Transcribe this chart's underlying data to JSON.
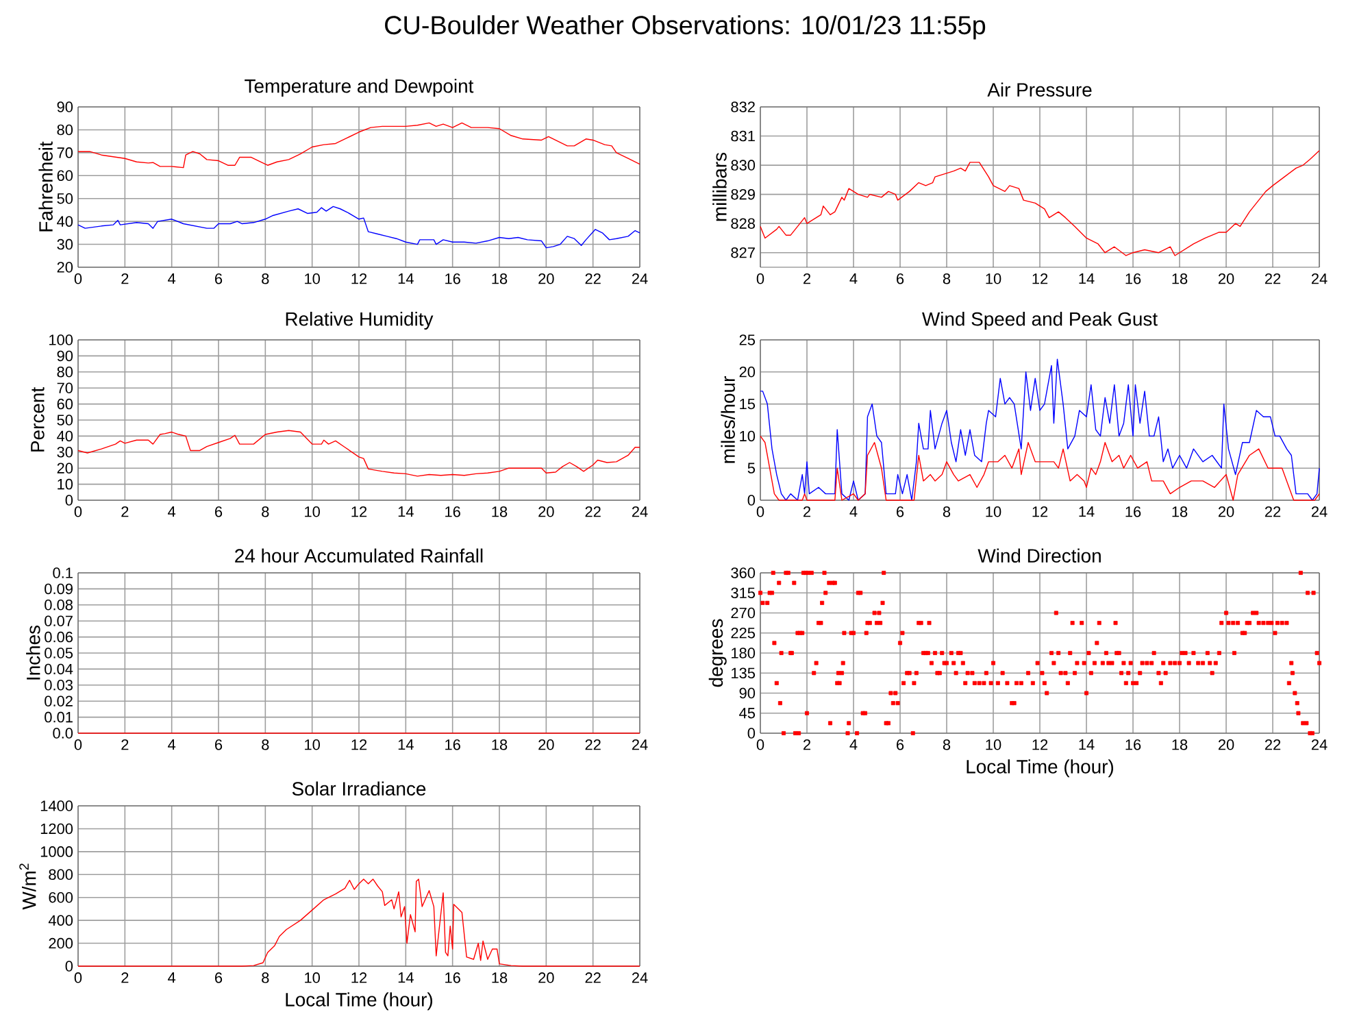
{
  "chart_data": [
    {
      "type": "line",
      "title": "Temperature and Dewpoint",
      "ylabel": "Fahrenheit",
      "annotations": [
        "CU-Boulder Weather Observations: 10/01/23 11:55p"
      ],
      "xlim": [
        0,
        24
      ],
      "xticks": [
        0,
        2,
        4,
        6,
        8,
        10,
        12,
        14,
        16,
        18,
        20,
        22,
        24
      ],
      "ylim": [
        20,
        90
      ],
      "yticks": [
        20,
        30,
        40,
        50,
        60,
        70,
        80,
        90
      ],
      "grid": true,
      "series": [
        {
          "color": "#ff0000",
          "x": [
            0,
            0.5,
            1,
            2,
            2.5,
            3,
            3.2,
            3.5,
            4,
            4.5,
            4.6,
            4.9,
            5.2,
            5.5,
            6,
            6.4,
            6.7,
            6.9,
            7.4,
            7.7,
            8.1,
            8.5,
            9,
            9.5,
            10,
            10.5,
            11,
            11.5,
            12,
            12.5,
            13,
            14,
            14.5,
            15,
            15.3,
            15.6,
            16,
            16.4,
            16.8,
            17.5,
            18,
            18.5,
            19,
            19.8,
            20.1,
            20.5,
            20.9,
            21.2,
            21.7,
            22,
            22.5,
            22.8,
            23,
            23.5,
            24
          ],
          "values": [
            70.5,
            70.5,
            69,
            67.5,
            66,
            65.5,
            65.7,
            64,
            64,
            63.5,
            69,
            70.5,
            69.5,
            67,
            66.5,
            64.5,
            64.5,
            68,
            68,
            66.5,
            64.5,
            66,
            67,
            69.5,
            72.5,
            73.5,
            74,
            76.5,
            79,
            81,
            81.5,
            81.5,
            82,
            83,
            81.5,
            82.5,
            81,
            83,
            81,
            81,
            80.5,
            77.5,
            76,
            75.5,
            77,
            75,
            73,
            73,
            76,
            75.5,
            73.5,
            73,
            70,
            67.5,
            65
          ]
        },
        {
          "color": "#0000ff",
          "x": [
            0,
            0.3,
            1,
            1.5,
            1.7,
            1.8,
            2.5,
            3,
            3.2,
            3.4,
            4,
            4.5,
            5,
            5.5,
            5.8,
            6,
            6.5,
            6.8,
            7,
            7.5,
            8,
            8.3,
            9,
            9.4,
            9.8,
            10.2,
            10.4,
            10.6,
            10.9,
            11.2,
            11.5,
            12,
            12.2,
            12.4,
            12.8,
            13.2,
            13.6,
            14,
            14.5,
            14.6,
            15.2,
            15.3,
            15.6,
            16,
            16.5,
            17,
            17.5,
            18,
            18.4,
            18.8,
            19.2,
            19.8,
            20,
            20.3,
            20.6,
            20.9,
            21.2,
            21.5,
            21.7,
            22.1,
            22.4,
            22.7,
            23,
            23.5,
            23.8,
            24
          ],
          "values": [
            38.5,
            37,
            38,
            38.5,
            40.5,
            38.5,
            39.5,
            39,
            37,
            40,
            41,
            39,
            38,
            37,
            37,
            39,
            39,
            40,
            39,
            39.5,
            41,
            42.5,
            44.5,
            45.5,
            43.5,
            44,
            46,
            44.5,
            46.5,
            45.5,
            44,
            41,
            41.5,
            35.5,
            34.5,
            33.5,
            32.5,
            31,
            30,
            32,
            32,
            30,
            32,
            31,
            31,
            30.5,
            31.5,
            33,
            32.5,
            33,
            32,
            31.5,
            28.5,
            29,
            30,
            33.5,
            32.5,
            29.5,
            32,
            36.5,
            35,
            32,
            32.5,
            33.5,
            36,
            35
          ]
        }
      ]
    },
    {
      "type": "line",
      "title": "Air Pressure",
      "ylabel": "millibars",
      "xlim": [
        0,
        24
      ],
      "xticks": [
        0,
        2,
        4,
        6,
        8,
        10,
        12,
        14,
        16,
        18,
        20,
        22,
        24
      ],
      "ylim": [
        826.5,
        832
      ],
      "yticks": [
        827,
        828,
        829,
        830,
        831,
        832
      ],
      "grid": true,
      "series": [
        {
          "color": "#ff0000",
          "x": [
            0,
            0.2,
            0.7,
            0.8,
            1.1,
            1.3,
            1.6,
            1.8,
            1.9,
            2,
            2.4,
            2.6,
            2.7,
            3,
            3.2,
            3.5,
            3.6,
            3.8,
            4.2,
            4.6,
            4.7,
            5.2,
            5.5,
            5.8,
            5.9,
            6.4,
            6.8,
            7.1,
            7.4,
            7.5,
            7.9,
            8.3,
            8.6,
            8.8,
            9,
            9.4,
            9.8,
            10,
            10.5,
            10.7,
            11.1,
            11.3,
            11.8,
            12.2,
            12.4,
            12.8,
            13.1,
            13.5,
            14,
            14.5,
            14.8,
            15.2,
            15.7,
            16,
            16.5,
            17.1,
            17.6,
            17.8,
            18.2,
            18.6,
            19.1,
            19.7,
            20,
            20.4,
            20.6,
            21,
            21.3,
            21.7,
            22,
            22.5,
            23,
            23.3,
            23.6,
            24
          ],
          "values": [
            827.9,
            827.5,
            827.8,
            827.9,
            827.6,
            827.6,
            827.9,
            828.1,
            828.2,
            828,
            828.2,
            828.3,
            828.6,
            828.3,
            828.4,
            828.9,
            828.8,
            829.2,
            829,
            828.9,
            829,
            828.9,
            829.1,
            829,
            828.8,
            829.1,
            829.4,
            829.3,
            829.4,
            829.6,
            829.7,
            829.8,
            829.9,
            829.8,
            830.1,
            830.1,
            829.6,
            829.3,
            829.1,
            829.3,
            829.2,
            828.8,
            828.7,
            828.5,
            828.2,
            828.4,
            828.2,
            827.9,
            827.5,
            827.3,
            827,
            827.2,
            826.9,
            827,
            827.1,
            827,
            827.2,
            826.9,
            827.1,
            827.3,
            827.5,
            827.7,
            827.7,
            828,
            827.9,
            828.4,
            828.7,
            829.1,
            829.3,
            829.6,
            829.9,
            830,
            830.2,
            830.5
          ]
        }
      ]
    },
    {
      "type": "line",
      "title": "Relative Humidity",
      "ylabel": "Percent",
      "xlim": [
        0,
        24
      ],
      "xticks": [
        0,
        2,
        4,
        6,
        8,
        10,
        12,
        14,
        16,
        18,
        20,
        22,
        24
      ],
      "ylim": [
        0,
        100
      ],
      "yticks": [
        0,
        10,
        20,
        30,
        40,
        50,
        60,
        70,
        80,
        90,
        100
      ],
      "grid": true,
      "series": [
        {
          "color": "#ff0000",
          "x": [
            0,
            0.4,
            1,
            1.6,
            1.8,
            2,
            2.5,
            3,
            3.2,
            3.5,
            3.7,
            4,
            4.3,
            4.6,
            4.8,
            5.2,
            5.5,
            6,
            6.5,
            6.7,
            6.9,
            7.5,
            8,
            8.5,
            9,
            9.5,
            9.8,
            10,
            10.4,
            10.5,
            10.7,
            11,
            11.4,
            12,
            12.2,
            12.4,
            13,
            13.5,
            14,
            14.5,
            15,
            15.5,
            16,
            16.5,
            17,
            17.5,
            18,
            18.4,
            19.8,
            20,
            20.4,
            20.7,
            21,
            21.3,
            21.6,
            22,
            22.2,
            22.6,
            23,
            23.5,
            23.8,
            24
          ],
          "values": [
            31,
            29.5,
            32,
            35,
            37,
            35.5,
            37.5,
            37.5,
            35,
            41,
            41.5,
            42.5,
            41,
            40,
            31,
            31,
            33.5,
            36,
            38.5,
            40.5,
            35,
            35,
            41,
            42.5,
            43.5,
            42.5,
            38,
            35,
            35,
            37.5,
            35,
            37,
            33,
            27,
            26,
            19.5,
            18,
            17,
            16.5,
            15,
            16,
            15.5,
            16,
            15.5,
            16.5,
            17,
            18,
            20,
            20,
            17,
            17.5,
            21,
            23.5,
            21,
            18,
            22,
            25,
            23.5,
            24,
            28,
            33,
            33
          ]
        }
      ]
    },
    {
      "type": "line",
      "title": "Wind Speed and Peak Gust",
      "ylabel": "miles/hour",
      "xlim": [
        0,
        24
      ],
      "xticks": [
        0,
        2,
        4,
        6,
        8,
        10,
        12,
        14,
        16,
        18,
        20,
        22,
        24
      ],
      "ylim": [
        0,
        25
      ],
      "yticks": [
        0,
        5,
        10,
        15,
        20,
        25
      ],
      "grid": true,
      "series": [
        {
          "color": "#0000ff",
          "x": [
            0,
            0.1,
            0.3,
            0.5,
            0.7,
            0.9,
            1.1,
            1.3,
            1.6,
            1.8,
            1.9,
            2,
            2.1,
            2.5,
            2.8,
            3.2,
            3.3,
            3.5,
            3.8,
            4,
            4.2,
            4.5,
            4.6,
            4.8,
            5,
            5.2,
            5.4,
            5.8,
            5.9,
            6.1,
            6.3,
            6.5,
            6.7,
            6.8,
            7,
            7.2,
            7.3,
            7.5,
            7.8,
            8,
            8.2,
            8.4,
            8.6,
            8.8,
            9,
            9.2,
            9.5,
            9.7,
            9.8,
            10.1,
            10.3,
            10.5,
            10.7,
            10.9,
            11.2,
            11.4,
            11.6,
            11.8,
            12,
            12.2,
            12.4,
            12.5,
            12.6,
            12.75,
            13,
            13.2,
            13.5,
            13.7,
            14,
            14.2,
            14.4,
            14.6,
            14.8,
            15,
            15.2,
            15.4,
            15.6,
            15.8,
            16,
            16.1,
            16.3,
            16.5,
            16.7,
            16.9,
            17.1,
            17.3,
            17.5,
            17.7,
            18,
            18.3,
            18.6,
            19,
            19.4,
            19.8,
            19.9,
            20.1,
            20.4,
            20.7,
            21,
            21.3,
            21.6,
            21.9,
            22.1,
            22.3,
            22.6,
            22.8,
            23,
            23.5,
            23.7,
            23.9,
            24
          ],
          "values": [
            17,
            17,
            15,
            8,
            4,
            1,
            0,
            1,
            0,
            4,
            1,
            6,
            1,
            2,
            1,
            1,
            11,
            1,
            0,
            3,
            0,
            1,
            13,
            15,
            10,
            9,
            1,
            1,
            4,
            1,
            4,
            0,
            6,
            12,
            8,
            8,
            14,
            8,
            12,
            14,
            9,
            6,
            11,
            7,
            11,
            7,
            6,
            12,
            14,
            13,
            19,
            15,
            16,
            15,
            8,
            20,
            14,
            19,
            14,
            15,
            19,
            21,
            12,
            22,
            15,
            8,
            10,
            14,
            13,
            18,
            11,
            10,
            16,
            12,
            18,
            10,
            12,
            18,
            10,
            18,
            12,
            17,
            10,
            10,
            13,
            6,
            8,
            5,
            7,
            5,
            8,
            6,
            7,
            5,
            15,
            8,
            4,
            9,
            9,
            14,
            13,
            13,
            10,
            10,
            8,
            7,
            1,
            1,
            0,
            1,
            5
          ]
        },
        {
          "color": "#ff0000",
          "x": [
            0,
            0.2,
            0.4,
            0.6,
            0.8,
            1.8,
            1.9,
            2,
            3.2,
            3.3,
            3.5,
            4,
            4.2,
            4.5,
            4.6,
            4.9,
            5.2,
            5.4,
            6.6,
            6.8,
            7,
            7.3,
            7.5,
            7.8,
            8,
            8.3,
            8.5,
            9,
            9.3,
            9.6,
            9.8,
            10.2,
            10.5,
            10.8,
            11.1,
            11.2,
            11.5,
            11.8,
            12.2,
            12.6,
            12.8,
            13,
            13.3,
            13.6,
            13.9,
            14,
            14.2,
            14.4,
            14.6,
            14.8,
            15.1,
            15.4,
            15.6,
            15.9,
            16.2,
            16.6,
            16.8,
            17.3,
            17.6,
            18,
            18.5,
            19,
            19.5,
            20,
            20.3,
            20.5,
            21,
            21.4,
            21.8,
            22.4,
            22.6,
            22.9,
            23.8,
            24
          ],
          "values": [
            10,
            9,
            5,
            1,
            0,
            0,
            1,
            0,
            0,
            5,
            0,
            1,
            0,
            1,
            7,
            9,
            5,
            0,
            0,
            7,
            3,
            4,
            3,
            4,
            6,
            4,
            3,
            4,
            2,
            4,
            6,
            6,
            7,
            5,
            8,
            4,
            9,
            6,
            6,
            6,
            5,
            8,
            3,
            4,
            3,
            2,
            5,
            4,
            6,
            9,
            6,
            7,
            5,
            7,
            5,
            6,
            3,
            3,
            1,
            2,
            3,
            3,
            2,
            4,
            0,
            4,
            7,
            8,
            5,
            5,
            3,
            0,
            0,
            1
          ]
        }
      ]
    },
    {
      "type": "line",
      "title": "24 hour Accumulated Rainfall",
      "ylabel": "Inches",
      "xlim": [
        0,
        24
      ],
      "xticks": [
        0,
        2,
        4,
        6,
        8,
        10,
        12,
        14,
        16,
        18,
        20,
        22,
        24
      ],
      "ylim": [
        0,
        0.1
      ],
      "yticks": [
        {
          "value": 0,
          "label": "0.0"
        },
        0.01,
        0.02,
        0.03,
        0.04,
        0.05,
        0.06,
        0.07,
        0.08,
        0.09,
        0.1
      ],
      "grid": true,
      "series": [
        {
          "color": "#ff0000",
          "x": [
            0,
            24
          ],
          "values": [
            0,
            0
          ]
        }
      ]
    },
    {
      "type": "scatter",
      "title": "Wind Direction",
      "ylabel": "degrees",
      "xlabel": "Local Time (hour)",
      "marker": "square",
      "xlim": [
        0,
        24
      ],
      "xticks": [
        0,
        2,
        4,
        6,
        8,
        10,
        12,
        14,
        16,
        18,
        20,
        22,
        24
      ],
      "ylim": [
        0,
        360
      ],
      "yticks": [
        0,
        45,
        90,
        135,
        180,
        225,
        270,
        315,
        360
      ],
      "grid": true,
      "series": [
        {
          "color": "#ff0000",
          "x": [
            0,
            0.1,
            0.3,
            0.4,
            0.5,
            0.55,
            0.6,
            0.7,
            0.8,
            0.85,
            0.9,
            1.0,
            1.1,
            1.2,
            1.3,
            1.35,
            1.45,
            1.5,
            1.6,
            1.65,
            1.7,
            1.8,
            1.85,
            1.95,
            2.0,
            2.05,
            2.2,
            2.3,
            2.4,
            2.5,
            2.6,
            2.65,
            2.75,
            2.8,
            2.95,
            3.0,
            3.1,
            3.2,
            3.3,
            3.35,
            3.4,
            3.5,
            3.55,
            3.6,
            3.75,
            3.8,
            3.9,
            4.0,
            4.15,
            4.2,
            4.3,
            4.4,
            4.5,
            4.55,
            4.6,
            4.7,
            4.9,
            5.0,
            5.1,
            5.15,
            5.25,
            5.3,
            5.4,
            5.5,
            5.6,
            5.7,
            5.8,
            5.9,
            6.0,
            6.1,
            6.15,
            6.3,
            6.4,
            6.55,
            6.6,
            6.7,
            6.8,
            6.9,
            7.0,
            7.1,
            7.2,
            7.25,
            7.35,
            7.5,
            7.6,
            7.7,
            7.8,
            7.9,
            8.0,
            8.2,
            8.3,
            8.4,
            8.5,
            8.6,
            8.7,
            8.8,
            8.9,
            9.1,
            9.2,
            9.4,
            9.6,
            9.7,
            9.9,
            10.0,
            10.2,
            10.4,
            10.6,
            10.8,
            10.9,
            11.0,
            11.2,
            11.5,
            11.7,
            11.9,
            12.1,
            12.2,
            12.3,
            12.5,
            12.6,
            12.7,
            12.8,
            12.9,
            13.1,
            13.2,
            13.3,
            13.4,
            13.5,
            13.6,
            13.8,
            13.9,
            14.0,
            14.1,
            14.2,
            14.35,
            14.45,
            14.55,
            14.7,
            14.85,
            14.95,
            15.1,
            15.25,
            15.3,
            15.4,
            15.5,
            15.6,
            15.7,
            15.8,
            15.9,
            16.0,
            16.15,
            16.3,
            16.4,
            16.6,
            16.8,
            16.9,
            17.1,
            17.2,
            17.3,
            17.4,
            17.6,
            17.8,
            18.0,
            18.1,
            18.25,
            18.4,
            18.6,
            18.8,
            19.0,
            19.2,
            19.3,
            19.4,
            19.55,
            19.7,
            19.8,
            20.0,
            20.1,
            20.3,
            20.35,
            20.5,
            20.7,
            20.8,
            20.9,
            21.0,
            21.15,
            21.3,
            21.4,
            21.6,
            21.8,
            21.95,
            22.1,
            22.2,
            22.4,
            22.6,
            22.7,
            22.8,
            22.85,
            22.95,
            23.05,
            23.1,
            23.2,
            23.3,
            23.45,
            23.5,
            23.6,
            23.7,
            23.75,
            23.9,
            24.0
          ],
          "values": [
            315,
            292.5,
            292.5,
            315,
            315,
            360,
            202.5,
            112.5,
            337.5,
            67.5,
            180,
            0,
            360,
            360,
            180,
            180,
            337.5,
            0,
            225,
            0,
            225,
            225,
            360,
            360,
            45,
            360,
            360,
            135,
            157.5,
            247.5,
            247.5,
            292.5,
            360,
            315,
            337.5,
            22.5,
            337.5,
            337.5,
            112.5,
            135,
            112.5,
            135,
            157.5,
            225,
            0,
            22.5,
            225,
            225,
            0,
            315,
            315,
            45,
            45,
            225,
            247.5,
            247.5,
            270,
            247.5,
            270,
            247.5,
            292.5,
            360,
            22.5,
            22.5,
            90,
            67.5,
            90,
            67.5,
            202.5,
            225,
            112.5,
            135,
            135,
            0,
            112.5,
            135,
            247.5,
            247.5,
            180,
            180,
            180,
            247.5,
            157.5,
            180,
            135,
            135,
            180,
            157.5,
            157.5,
            180,
            157.5,
            135,
            180,
            180,
            157.5,
            112.5,
            135,
            135,
            112.5,
            112.5,
            112.5,
            135,
            112.5,
            157.5,
            112.5,
            135,
            112.5,
            67.5,
            67.5,
            112.5,
            112.5,
            135,
            112.5,
            157.5,
            135,
            112.5,
            90,
            180,
            157.5,
            270,
            180,
            135,
            135,
            112.5,
            180,
            247.5,
            135,
            157.5,
            247.5,
            157.5,
            90,
            180,
            135,
            157.5,
            202.5,
            247.5,
            157.5,
            180,
            157.5,
            157.5,
            247.5,
            180,
            180,
            135,
            157.5,
            112.5,
            135,
            157.5,
            112.5,
            112.5,
            135,
            157.5,
            157.5,
            157.5,
            180,
            135,
            112.5,
            157.5,
            135,
            157.5,
            157.5,
            157.5,
            180,
            180,
            157.5,
            180,
            157.5,
            157.5,
            180,
            157.5,
            135,
            157.5,
            180,
            247.5,
            270,
            247.5,
            247.5,
            180,
            247.5,
            225,
            225,
            247.5,
            247.5,
            270,
            270,
            247.5,
            247.5,
            247.5,
            247.5,
            225,
            247.5,
            247.5,
            247.5,
            112.5,
            157.5,
            135,
            90,
            67.5,
            45,
            360,
            22.5,
            22.5,
            315,
            0,
            0,
            315,
            180,
            157.5
          ]
        }
      ]
    },
    {
      "type": "line",
      "title": "Solar Irradiance",
      "ylabel": "W/m$^{2}$",
      "xlabel": "Local Time (hour)",
      "xlim": [
        0,
        24
      ],
      "xticks": [
        0,
        2,
        4,
        6,
        8,
        10,
        12,
        14,
        16,
        18,
        20,
        22,
        24
      ],
      "ylim": [
        0,
        1400
      ],
      "yticks": [
        0,
        200,
        400,
        600,
        800,
        1000,
        1200,
        1400
      ],
      "grid": true,
      "series": [
        {
          "color": "#ff0000",
          "x": [
            0,
            7,
            7.5,
            7.9,
            8.1,
            8.4,
            8.6,
            8.9,
            9.5,
            10,
            10.5,
            11,
            11.4,
            11.6,
            11.8,
            12,
            12.2,
            12.4,
            12.6,
            12.8,
            13,
            13.1,
            13.4,
            13.5,
            13.7,
            13.8,
            13.95,
            14.05,
            14.2,
            14.4,
            14.45,
            14.55,
            14.7,
            15,
            15.2,
            15.3,
            15.6,
            15.7,
            15.8,
            15.9,
            16,
            16.05,
            16.4,
            16.6,
            16.9,
            17.1,
            17.2,
            17.3,
            17.5,
            17.7,
            17.9,
            18,
            18.5,
            19,
            24
          ],
          "values": [
            0,
            0,
            5,
            30,
            120,
            180,
            260,
            320,
            400,
            490,
            580,
            630,
            680,
            750,
            670,
            720,
            760,
            720,
            760,
            700,
            650,
            530,
            580,
            500,
            650,
            430,
            520,
            200,
            450,
            300,
            740,
            760,
            520,
            660,
            520,
            90,
            640,
            120,
            90,
            350,
            150,
            540,
            470,
            80,
            60,
            200,
            50,
            220,
            60,
            150,
            150,
            20,
            5,
            0,
            0
          ]
        }
      ]
    }
  ]
}
